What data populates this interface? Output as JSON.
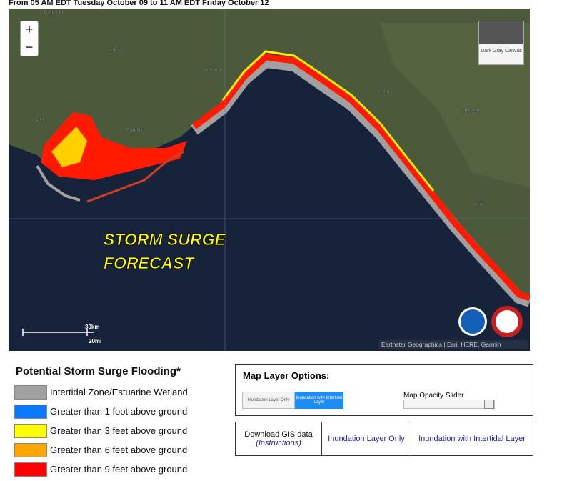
{
  "header": "From 05 AM EDT Tuesday October 09 to 11 AM EDT Friday October 12",
  "map": {
    "zoom_in": "+",
    "zoom_out": "−",
    "places": [
      "Calhoun",
      "Liberty",
      "Wakulla",
      "Gulf",
      "Franklin",
      "Taylor",
      "Lafayette",
      "Dixie"
    ],
    "overlay_title": [
      "STORM SURGE",
      "FORECAST"
    ],
    "scale": [
      "30km",
      "20mi"
    ],
    "basemap": "Dark Gray Canvas",
    "attribution": "Earthstar Geographics | Esri, HERE, Garmin"
  },
  "legend": {
    "title": "Potential Storm Surge Flooding*",
    "items": [
      {
        "label": "Intertidal Zone/Estuarine Wetland",
        "color": "#a0a0a0"
      },
      {
        "label": "Greater than 1 foot above ground",
        "color": "#0a78ff"
      },
      {
        "label": "Greater than 3 feet above ground",
        "color": "#ffff00"
      },
      {
        "label": "Greater than 6 feet above ground",
        "color": "#ffa500"
      },
      {
        "label": "Greater than 9 feet above ground",
        "color": "#ff0000"
      }
    ]
  },
  "layer_options": {
    "title": "Map Layer Options:",
    "toggles": [
      "Inundation Layer Only",
      "Inundation with Intertidal Layer"
    ],
    "slider_label": "Map Opacity Slider"
  },
  "downloads": {
    "gis": "Download GIS data",
    "instructions": "(Instructions)",
    "links": [
      "Inundation Layer Only",
      "Inundation with Intertidal Layer"
    ]
  }
}
